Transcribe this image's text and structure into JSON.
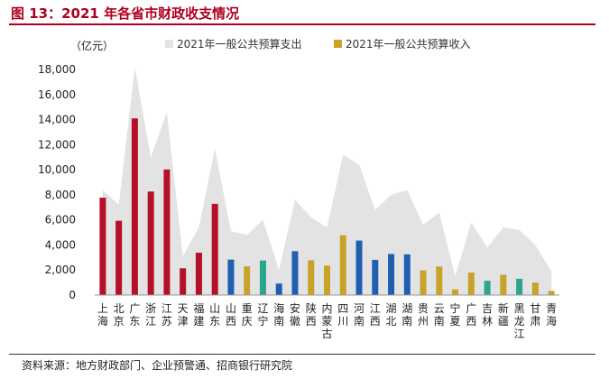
{
  "figure": {
    "title": "图 13：2021 年各省市财政收支情况",
    "source": "资料来源：地方财政部门、企业预警通、招商银行研究院"
  },
  "chart_data": {
    "type": "bar",
    "unit_label": "（亿元）",
    "ylim": [
      0,
      18000
    ],
    "yticks": [
      0,
      2000,
      4000,
      6000,
      8000,
      10000,
      12000,
      14000,
      16000,
      18000
    ],
    "ytick_labels": [
      "0",
      "2,000",
      "4,000",
      "6,000",
      "8,000",
      "10,000",
      "12,000",
      "14,000",
      "16,000",
      "18,000"
    ],
    "categories": [
      "上海",
      "北京",
      "广东",
      "浙江",
      "江苏",
      "天津",
      "福建",
      "山东",
      "山西",
      "重庆",
      "辽宁",
      "海南",
      "安徽",
      "陕西",
      "内蒙古",
      "四川",
      "河南",
      "江西",
      "湖北",
      "湖南",
      "贵州",
      "云南",
      "宁夏",
      "广西",
      "吉林",
      "新疆",
      "黑龙江",
      "甘肃",
      "青海"
    ],
    "series": [
      {
        "name": "2021年一般公共预算支出",
        "render": "area",
        "color": "#e3e3e3",
        "values": [
          8400,
          7200,
          18200,
          11000,
          14600,
          3100,
          5400,
          11700,
          5100,
          4800,
          6000,
          2000,
          7600,
          6200,
          5400,
          11200,
          10400,
          6800,
          8000,
          8400,
          5600,
          6600,
          1500,
          5800,
          3800,
          5400,
          5200,
          4000,
          1900
        ]
      },
      {
        "name": "2021年一般公共预算收入",
        "render": "bar",
        "colors_legend": "#c8a22b",
        "values": [
          7770,
          5930,
          14100,
          8260,
          10020,
          2140,
          3380,
          7280,
          2830,
          2290,
          2760,
          920,
          3500,
          2780,
          2350,
          4770,
          4350,
          2810,
          3280,
          3250,
          1970,
          2280,
          460,
          1800,
          1140,
          1620,
          1300,
          1000,
          330
        ],
        "bar_colors": [
          "#b5102b",
          "#b5102b",
          "#b5102b",
          "#b5102b",
          "#b5102b",
          "#b5102b",
          "#b5102b",
          "#b5102b",
          "#1f5fb0",
          "#c8a22b",
          "#2ca58d",
          "#1f5fb0",
          "#1f5fb0",
          "#c8a22b",
          "#c8a22b",
          "#c8a22b",
          "#1f5fb0",
          "#1f5fb0",
          "#1f5fb0",
          "#1f5fb0",
          "#c8a22b",
          "#c8a22b",
          "#c8a22b",
          "#c8a22b",
          "#2ca58d",
          "#c8a22b",
          "#2ca58d",
          "#c8a22b",
          "#c8a22b"
        ]
      }
    ],
    "legend": "top",
    "grid": false
  }
}
